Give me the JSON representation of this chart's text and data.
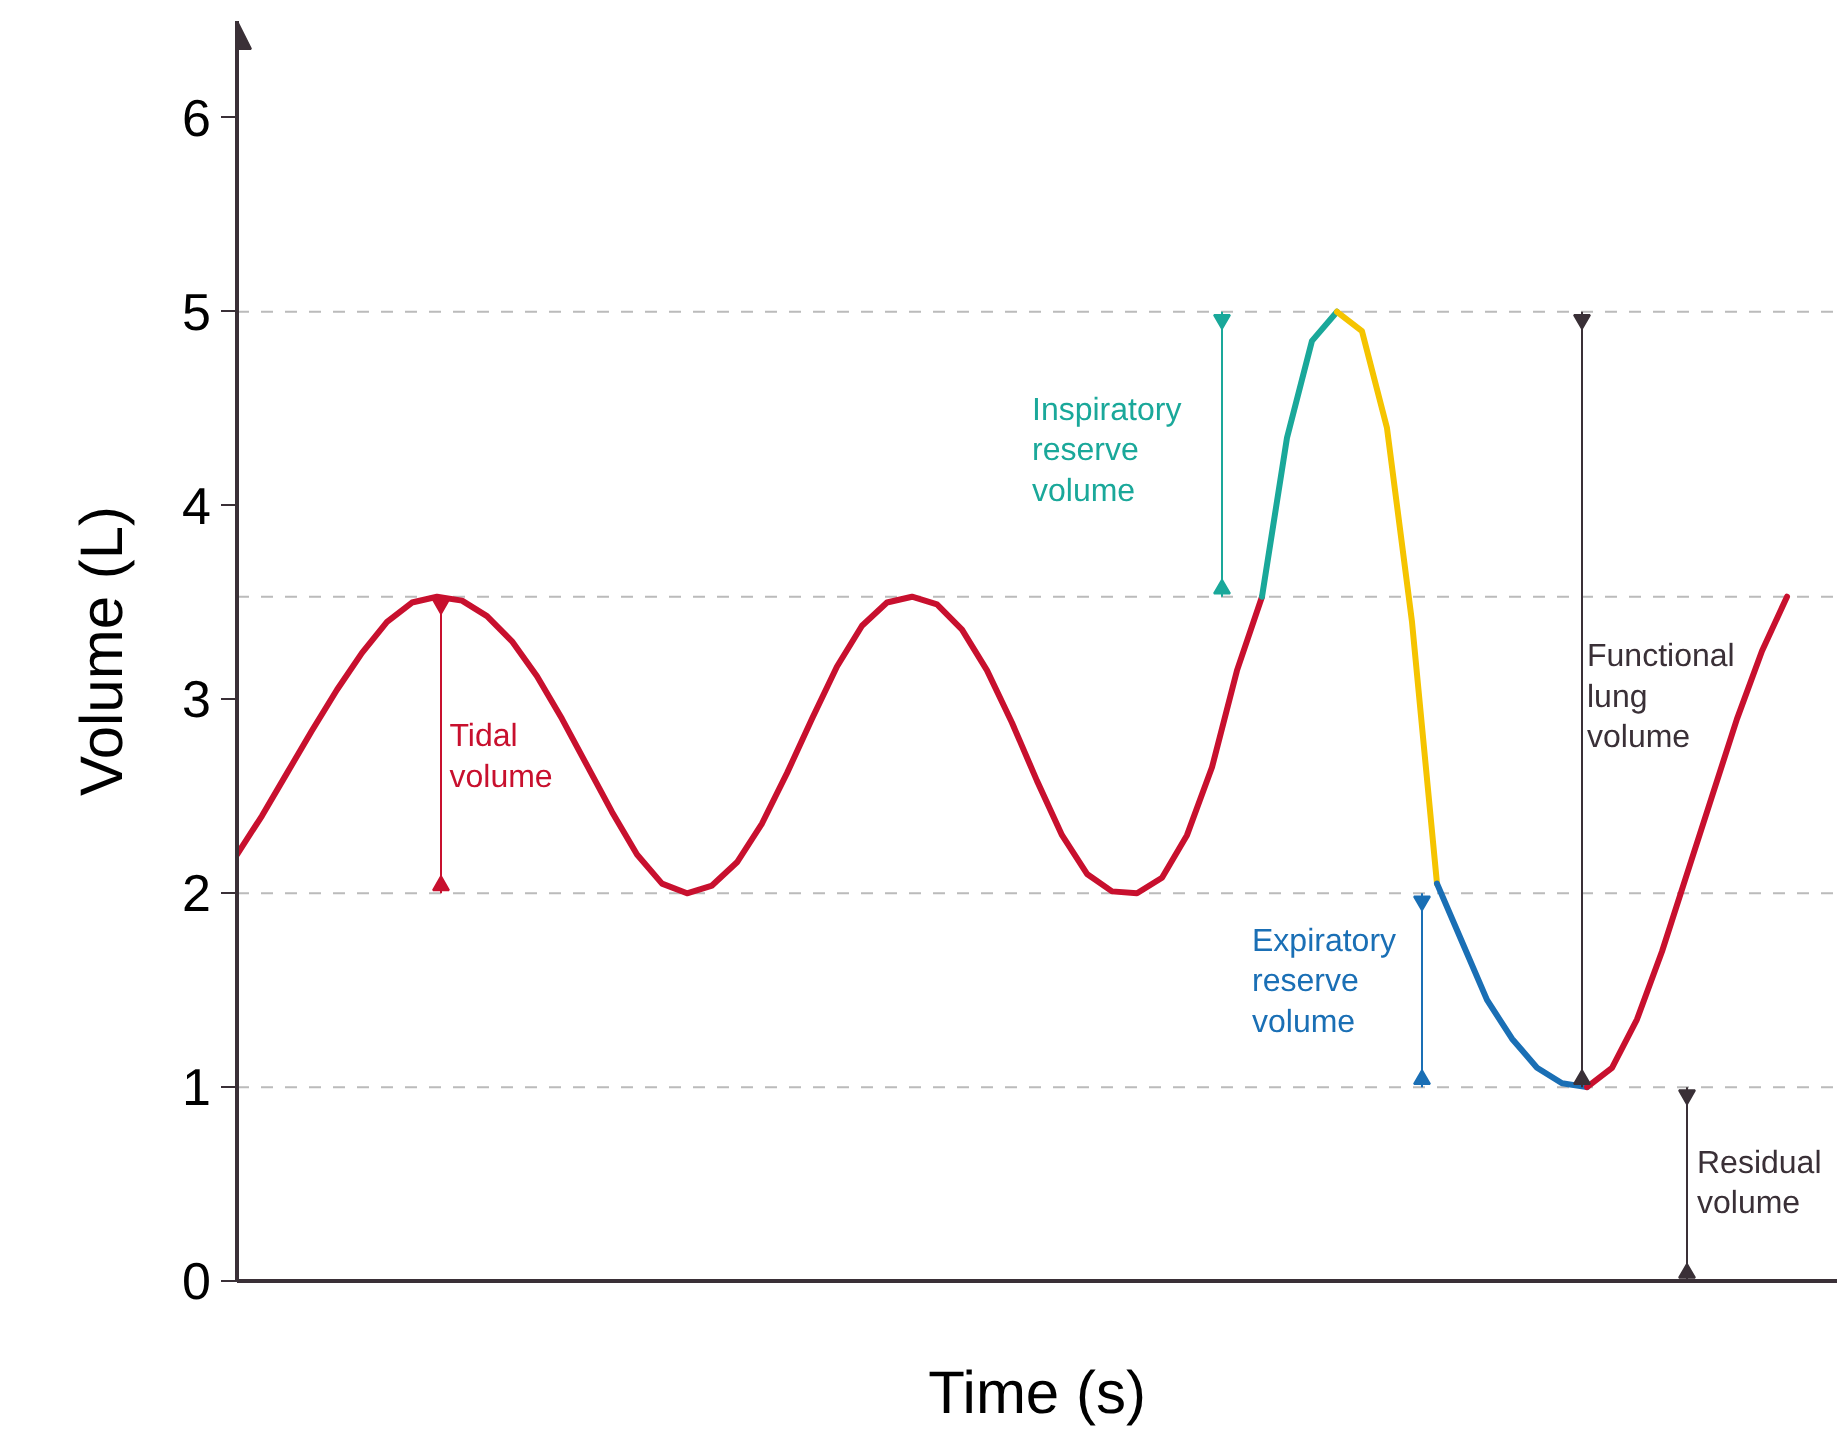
{
  "chart_data": {
    "type": "line",
    "xlabel": "Time (s)",
    "ylabel": "Volume (L)",
    "categories": [
      null,
      null,
      null,
      null,
      null,
      null,
      null,
      null,
      null,
      null,
      null,
      null,
      null,
      null,
      null,
      null,
      null,
      null,
      null,
      null,
      null,
      null,
      null,
      null,
      null,
      null,
      null,
      null,
      null,
      null,
      null,
      null,
      null,
      null,
      null,
      null,
      null,
      null,
      null,
      null,
      null,
      null,
      null,
      null,
      null,
      null,
      null,
      null,
      null,
      null,
      null,
      null,
      null,
      null,
      null,
      null,
      null,
      null,
      null,
      null,
      null,
      null,
      null
    ],
    "series": [
      {
        "color": "#c8102e",
        "values": [
          2.2,
          2.4,
          2.62,
          2.84,
          3.05,
          3.24,
          3.4,
          3.5,
          3.53,
          3.51,
          3.43,
          3.3,
          3.12,
          2.9,
          2.66,
          2.42,
          2.2,
          2.05,
          2.0,
          2.04,
          2.16,
          2.36,
          2.62,
          2.9,
          3.17,
          3.38,
          3.5,
          3.53,
          3.49,
          3.36,
          3.15,
          2.88,
          2.58,
          2.3,
          2.1,
          2.01,
          2.0,
          2.08,
          2.3,
          2.65,
          3.15,
          3.53,
          null,
          null,
          null,
          null,
          null,
          null,
          null,
          null,
          null,
          null,
          null,
          null,
          null,
          null,
          null,
          null,
          null,
          null,
          null,
          null,
          null
        ]
      },
      {
        "color": "#1aa89a",
        "values": [
          null,
          null,
          null,
          null,
          null,
          null,
          null,
          null,
          null,
          null,
          null,
          null,
          null,
          null,
          null,
          null,
          null,
          null,
          null,
          null,
          null,
          null,
          null,
          null,
          null,
          null,
          null,
          null,
          null,
          null,
          null,
          null,
          null,
          null,
          null,
          null,
          null,
          null,
          null,
          null,
          null,
          3.53,
          4.35,
          4.85,
          5.0,
          null,
          null,
          null,
          null,
          null,
          null,
          null,
          null,
          null,
          null,
          null,
          null,
          null,
          null,
          null,
          null,
          null,
          null
        ]
      },
      {
        "color": "#f5c400",
        "values": [
          null,
          null,
          null,
          null,
          null,
          null,
          null,
          null,
          null,
          null,
          null,
          null,
          null,
          null,
          null,
          null,
          null,
          null,
          null,
          null,
          null,
          null,
          null,
          null,
          null,
          null,
          null,
          null,
          null,
          null,
          null,
          null,
          null,
          null,
          null,
          null,
          null,
          null,
          null,
          null,
          null,
          null,
          null,
          null,
          5.0,
          4.9,
          4.4,
          3.4,
          2.05,
          null,
          null,
          null,
          null,
          null,
          null,
          null,
          null,
          null,
          null,
          null,
          null,
          null,
          null
        ]
      },
      {
        "color": "#1a6fb5",
        "values": [
          null,
          null,
          null,
          null,
          null,
          null,
          null,
          null,
          null,
          null,
          null,
          null,
          null,
          null,
          null,
          null,
          null,
          null,
          null,
          null,
          null,
          null,
          null,
          null,
          null,
          null,
          null,
          null,
          null,
          null,
          null,
          null,
          null,
          null,
          null,
          null,
          null,
          null,
          null,
          null,
          null,
          null,
          null,
          null,
          null,
          null,
          null,
          null,
          2.05,
          1.75,
          1.45,
          1.25,
          1.1,
          1.02,
          1.0,
          null,
          null,
          null,
          null,
          null,
          null,
          null,
          null
        ]
      },
      {
        "color": "#c8102e",
        "values": [
          null,
          null,
          null,
          null,
          null,
          null,
          null,
          null,
          null,
          null,
          null,
          null,
          null,
          null,
          null,
          null,
          null,
          null,
          null,
          null,
          null,
          null,
          null,
          null,
          null,
          null,
          null,
          null,
          null,
          null,
          null,
          null,
          null,
          null,
          null,
          null,
          null,
          null,
          null,
          null,
          null,
          null,
          null,
          null,
          null,
          null,
          null,
          null,
          null,
          null,
          null,
          null,
          null,
          null,
          1.0,
          1.1,
          1.35,
          1.7,
          2.1,
          2.5,
          2.9,
          3.25,
          3.53
        ]
      }
    ],
    "ylim": [
      0,
      6.5
    ],
    "yticks": [
      0,
      1,
      2,
      3,
      4,
      5,
      6
    ],
    "ref_lines": [
      {
        "axis": "y",
        "value": 1,
        "color": "#bbbbbb",
        "line_style": "dashed"
      },
      {
        "axis": "y",
        "value": 2,
        "color": "#bbbbbb",
        "line_style": "dashed"
      },
      {
        "axis": "y",
        "value": 3.53,
        "color": "#bbbbbb",
        "line_style": "dashed"
      },
      {
        "axis": "y",
        "value": 5,
        "color": "#bbbbbb",
        "line_style": "dashed"
      }
    ],
    "annotations": [
      "Tidal volume",
      "Inspiratory reserve volume",
      "Expiratory reserve volume",
      "Functional lung volume",
      "Residual volume"
    ],
    "grid": false,
    "line_style": "solid",
    "marker": "none"
  }
}
